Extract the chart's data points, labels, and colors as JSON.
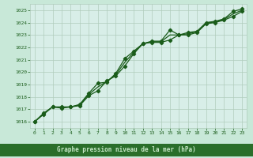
{
  "title": "Graphe pression niveau de la mer (hPa)",
  "bg_color": "#c8e8d8",
  "plot_bg_color": "#d8eee8",
  "grid_color": "#b0ccbc",
  "line_color": "#1a5c1a",
  "title_bg": "#2a6e2a",
  "title_fg": "#c8e8c8",
  "xlim": [
    -0.5,
    23.5
  ],
  "ylim": [
    1015.5,
    1025.5
  ],
  "xticks": [
    0,
    1,
    2,
    3,
    4,
    5,
    6,
    7,
    8,
    9,
    10,
    11,
    12,
    13,
    14,
    15,
    16,
    17,
    18,
    19,
    20,
    21,
    22,
    23
  ],
  "yticks": [
    1016,
    1017,
    1018,
    1019,
    1020,
    1021,
    1022,
    1023,
    1024,
    1025
  ],
  "s1_x": [
    0,
    1,
    2,
    3,
    4,
    5,
    6,
    7,
    8,
    9,
    10,
    11,
    12,
    13,
    14,
    15,
    16,
    17,
    18,
    19,
    20,
    21,
    22,
    23
  ],
  "s1_y": [
    1016.0,
    1016.6,
    1017.2,
    1017.2,
    1017.2,
    1017.4,
    1018.3,
    1019.1,
    1019.2,
    1019.9,
    1021.1,
    1021.7,
    1022.3,
    1022.4,
    1022.4,
    1022.6,
    1023.0,
    1023.0,
    1023.2,
    1023.9,
    1024.0,
    1024.2,
    1024.5,
    1024.9
  ],
  "s2_x": [
    0,
    1,
    2,
    3,
    4,
    5,
    6,
    7,
    8,
    9,
    10,
    11,
    12,
    13,
    14,
    15,
    16,
    17,
    18,
    19,
    20,
    21,
    22,
    23
  ],
  "s2_y": [
    1016.0,
    1016.7,
    1017.2,
    1017.1,
    1017.2,
    1017.3,
    1018.1,
    1018.5,
    1019.3,
    1019.7,
    1020.5,
    1021.5,
    1022.3,
    1022.5,
    1022.5,
    1023.4,
    1023.0,
    1023.2,
    1023.3,
    1024.0,
    1024.1,
    1024.3,
    1024.9,
    1025.1
  ],
  "s3_x": [
    0,
    1,
    2,
    3,
    4,
    5,
    6,
    7,
    8,
    9,
    10,
    11,
    12,
    13,
    14,
    15,
    16,
    17,
    18,
    19,
    20,
    21,
    22,
    23
  ],
  "s3_y": [
    1016.0,
    1016.65,
    1017.2,
    1017.15,
    1017.2,
    1017.35,
    1018.2,
    1018.8,
    1019.25,
    1019.8,
    1020.8,
    1021.6,
    1022.3,
    1022.45,
    1022.45,
    1023.0,
    1023.0,
    1023.1,
    1023.25,
    1023.95,
    1024.05,
    1024.25,
    1024.7,
    1025.0
  ]
}
